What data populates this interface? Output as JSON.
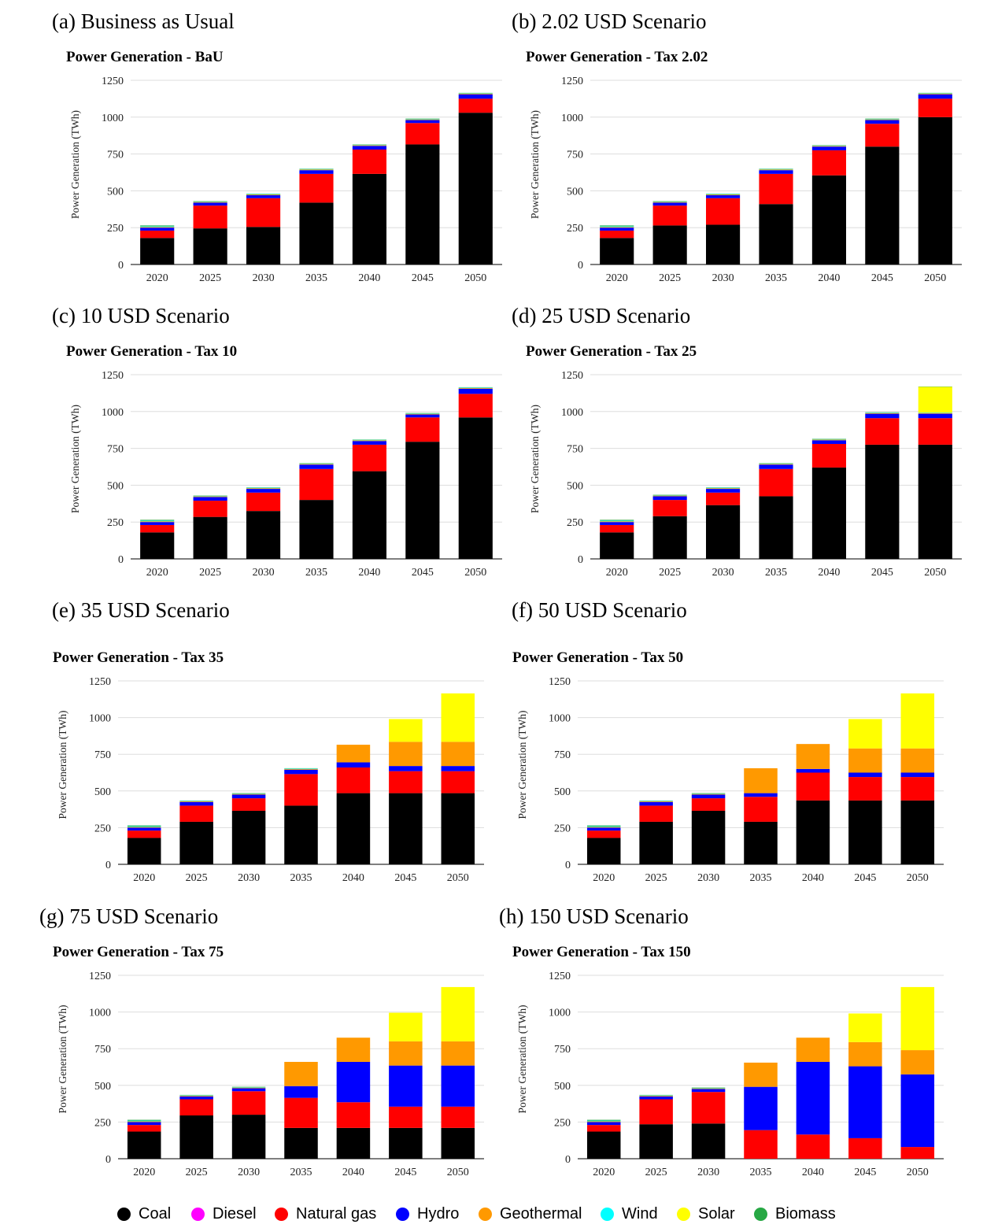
{
  "colors": {
    "Coal": "#000000",
    "Diesel": "#ff00ff",
    "Natural gas": "#ff0000",
    "Hydro": "#0000ff",
    "Geothermal": "#ff9900",
    "Wind": "#00ffff",
    "Solar": "#ffff00",
    "Biomass": "#27a844"
  },
  "legend": [
    {
      "name": "Coal",
      "color": "#000000"
    },
    {
      "name": "Diesel",
      "color": "#ff00ff"
    },
    {
      "name": "Natural gas",
      "color": "#ff0000"
    },
    {
      "name": "Hydro",
      "color": "#0000ff"
    },
    {
      "name": "Geothermal",
      "color": "#ff9900"
    },
    {
      "name": "Wind",
      "color": "#00ffff"
    },
    {
      "name": "Solar",
      "color": "#ffff00"
    },
    {
      "name": "Biomass",
      "color": "#27a844"
    }
  ],
  "panels": [
    {
      "label": "(a) Business as Usual"
    },
    {
      "label": "(b) 2.02 USD Scenario"
    },
    {
      "label": "(c) 10 USD Scenario"
    },
    {
      "label": "(d) 25 USD Scenario"
    },
    {
      "label": "(e) 35 USD Scenario"
    },
    {
      "label": "(f) 50 USD Scenario"
    },
    {
      "label": "(g) 75 USD Scenario"
    },
    {
      "label": "(h) 150 USD Scenario"
    }
  ],
  "chart_data": [
    {
      "type": "bar",
      "stacked": true,
      "title": "Power Generation - BaU",
      "ylabel": "Power Generation (TWh)",
      "categories": [
        "2020",
        "2025",
        "2030",
        "2035",
        "2040",
        "2045",
        "2050"
      ],
      "yticks": [
        "0",
        "250",
        "500",
        "750",
        "1000",
        "1250"
      ],
      "ylim": [
        0,
        1250
      ],
      "grid": true,
      "series": [
        {
          "name": "Coal",
          "values": [
            180,
            245,
            255,
            420,
            615,
            815,
            1030
          ]
        },
        {
          "name": "Natural gas",
          "values": [
            50,
            155,
            195,
            195,
            165,
            145,
            95
          ]
        },
        {
          "name": "Hydro",
          "values": [
            20,
            20,
            20,
            25,
            25,
            20,
            30
          ]
        },
        {
          "name": "Geothermal",
          "values": [
            5,
            5,
            5,
            5,
            5,
            5,
            5
          ]
        },
        {
          "name": "Wind",
          "values": [
            5,
            3,
            3,
            3,
            3,
            3,
            3
          ]
        },
        {
          "name": "Biomass",
          "values": [
            5,
            2,
            2,
            2,
            2,
            2,
            2
          ]
        }
      ]
    },
    {
      "type": "bar",
      "stacked": true,
      "title": "Power Generation - Tax 2.02",
      "ylabel": "Power Generation (TWh)",
      "categories": [
        "2020",
        "2025",
        "2030",
        "2035",
        "2040",
        "2045",
        "2050"
      ],
      "yticks": [
        "0",
        "250",
        "500",
        "750",
        "1000",
        "1250"
      ],
      "ylim": [
        0,
        1250
      ],
      "grid": true,
      "series": [
        {
          "name": "Coal",
          "values": [
            180,
            265,
            270,
            410,
            605,
            800,
            1000
          ]
        },
        {
          "name": "Natural gas",
          "values": [
            50,
            135,
            180,
            205,
            170,
            155,
            125
          ]
        },
        {
          "name": "Hydro",
          "values": [
            20,
            20,
            20,
            25,
            25,
            25,
            30
          ]
        },
        {
          "name": "Geothermal",
          "values": [
            5,
            5,
            5,
            5,
            5,
            5,
            5
          ]
        },
        {
          "name": "Wind",
          "values": [
            5,
            3,
            3,
            3,
            3,
            3,
            3
          ]
        },
        {
          "name": "Biomass",
          "values": [
            5,
            2,
            2,
            2,
            2,
            2,
            2
          ]
        }
      ]
    },
    {
      "type": "bar",
      "stacked": true,
      "title": "Power Generation - Tax 10",
      "ylabel": "Power Generation (TWh)",
      "categories": [
        "2020",
        "2025",
        "2030",
        "2035",
        "2040",
        "2045",
        "2050"
      ],
      "yticks": [
        "0",
        "250",
        "500",
        "750",
        "1000",
        "1250"
      ],
      "ylim": [
        0,
        1250
      ],
      "grid": true,
      "series": [
        {
          "name": "Coal",
          "values": [
            180,
            285,
            325,
            400,
            595,
            795,
            960
          ]
        },
        {
          "name": "Natural gas",
          "values": [
            50,
            110,
            125,
            210,
            180,
            165,
            160
          ]
        },
        {
          "name": "Hydro",
          "values": [
            20,
            25,
            25,
            30,
            25,
            20,
            35
          ]
        },
        {
          "name": "Geothermal",
          "values": [
            5,
            5,
            5,
            5,
            5,
            5,
            5
          ]
        },
        {
          "name": "Wind",
          "values": [
            5,
            3,
            3,
            3,
            3,
            3,
            3
          ]
        },
        {
          "name": "Biomass",
          "values": [
            5,
            2,
            2,
            2,
            2,
            2,
            2
          ]
        }
      ]
    },
    {
      "type": "bar",
      "stacked": true,
      "title": "Power Generation - Tax 25",
      "ylabel": "Power Generation (TWh)",
      "categories": [
        "2020",
        "2025",
        "2030",
        "2035",
        "2040",
        "2045",
        "2050"
      ],
      "yticks": [
        "0",
        "250",
        "500",
        "750",
        "1000",
        "1250"
      ],
      "ylim": [
        0,
        1250
      ],
      "grid": true,
      "series": [
        {
          "name": "Coal",
          "values": [
            180,
            290,
            365,
            425,
            620,
            775,
            775
          ]
        },
        {
          "name": "Natural gas",
          "values": [
            50,
            110,
            85,
            185,
            160,
            180,
            180
          ]
        },
        {
          "name": "Hydro",
          "values": [
            20,
            25,
            25,
            30,
            25,
            30,
            30
          ]
        },
        {
          "name": "Geothermal",
          "values": [
            5,
            5,
            5,
            5,
            5,
            5,
            5
          ]
        },
        {
          "name": "Wind",
          "values": [
            5,
            3,
            3,
            3,
            3,
            3,
            3
          ]
        },
        {
          "name": "Solar",
          "values": [
            0,
            0,
            0,
            0,
            0,
            0,
            175
          ]
        },
        {
          "name": "Biomass",
          "values": [
            5,
            2,
            2,
            2,
            2,
            2,
            2
          ]
        }
      ]
    },
    {
      "type": "bar",
      "stacked": true,
      "title": "Power Generation - Tax 35",
      "ylabel": "Power Generation (TWh)",
      "categories": [
        "2020",
        "2025",
        "2030",
        "2035",
        "2040",
        "2045",
        "2050"
      ],
      "yticks": [
        "0",
        "250",
        "500",
        "750",
        "1000",
        "1250"
      ],
      "ylim": [
        0,
        1250
      ],
      "grid": true,
      "series": [
        {
          "name": "Coal",
          "values": [
            180,
            290,
            365,
            400,
            485,
            485,
            485
          ]
        },
        {
          "name": "Natural gas",
          "values": [
            50,
            110,
            85,
            215,
            175,
            150,
            150
          ]
        },
        {
          "name": "Hydro",
          "values": [
            20,
            25,
            25,
            30,
            35,
            35,
            35
          ]
        },
        {
          "name": "Geothermal",
          "values": [
            5,
            5,
            5,
            5,
            120,
            165,
            165
          ]
        },
        {
          "name": "Wind",
          "values": [
            5,
            3,
            3,
            3,
            0,
            0,
            0
          ]
        },
        {
          "name": "Solar",
          "values": [
            0,
            0,
            0,
            0,
            0,
            155,
            330
          ]
        },
        {
          "name": "Biomass",
          "values": [
            5,
            2,
            2,
            2,
            0,
            0,
            0
          ]
        }
      ]
    },
    {
      "type": "bar",
      "stacked": true,
      "title": "Power Generation - Tax 50",
      "ylabel": "Power Generation (TWh)",
      "categories": [
        "2020",
        "2025",
        "2030",
        "2035",
        "2040",
        "2045",
        "2050"
      ],
      "yticks": [
        "0",
        "250",
        "500",
        "750",
        "1000",
        "1250"
      ],
      "ylim": [
        0,
        1250
      ],
      "grid": true,
      "series": [
        {
          "name": "Coal",
          "values": [
            180,
            290,
            365,
            290,
            435,
            435,
            435
          ]
        },
        {
          "name": "Natural gas",
          "values": [
            50,
            110,
            85,
            170,
            190,
            160,
            160
          ]
        },
        {
          "name": "Hydro",
          "values": [
            20,
            25,
            25,
            25,
            25,
            30,
            30
          ]
        },
        {
          "name": "Geothermal",
          "values": [
            5,
            5,
            5,
            170,
            170,
            165,
            165
          ]
        },
        {
          "name": "Wind",
          "values": [
            5,
            3,
            3,
            0,
            0,
            0,
            0
          ]
        },
        {
          "name": "Solar",
          "values": [
            0,
            0,
            0,
            0,
            0,
            200,
            375
          ]
        },
        {
          "name": "Biomass",
          "values": [
            5,
            2,
            2,
            0,
            0,
            0,
            0
          ]
        }
      ]
    },
    {
      "type": "bar",
      "stacked": true,
      "title": "Power Generation - Tax 75",
      "ylabel": "Power Generation (TWh)",
      "categories": [
        "2020",
        "2025",
        "2030",
        "2035",
        "2040",
        "2045",
        "2050"
      ],
      "yticks": [
        "0",
        "250",
        "500",
        "750",
        "1000",
        "1250"
      ],
      "ylim": [
        0,
        1250
      ],
      "grid": true,
      "series": [
        {
          "name": "Coal",
          "values": [
            185,
            295,
            300,
            210,
            210,
            210,
            210
          ]
        },
        {
          "name": "Natural gas",
          "values": [
            45,
            110,
            160,
            205,
            175,
            145,
            145
          ]
        },
        {
          "name": "Hydro",
          "values": [
            20,
            20,
            20,
            80,
            275,
            280,
            280
          ]
        },
        {
          "name": "Geothermal",
          "values": [
            5,
            5,
            5,
            165,
            165,
            165,
            165
          ]
        },
        {
          "name": "Wind",
          "values": [
            5,
            3,
            3,
            0,
            0,
            0,
            0
          ]
        },
        {
          "name": "Solar",
          "values": [
            0,
            0,
            0,
            0,
            0,
            195,
            370
          ]
        },
        {
          "name": "Biomass",
          "values": [
            5,
            2,
            2,
            0,
            0,
            0,
            0
          ]
        }
      ]
    },
    {
      "type": "bar",
      "stacked": true,
      "title": "Power Generation - Tax 150",
      "ylabel": "Power Generation (TWh)",
      "categories": [
        "2020",
        "2025",
        "2030",
        "2035",
        "2040",
        "2045",
        "2050"
      ],
      "yticks": [
        "0",
        "250",
        "500",
        "750",
        "1000",
        "1250"
      ],
      "ylim": [
        0,
        1250
      ],
      "grid": true,
      "series": [
        {
          "name": "Coal",
          "values": [
            185,
            235,
            240,
            0,
            0,
            0,
            0
          ]
        },
        {
          "name": "Natural gas",
          "values": [
            45,
            170,
            215,
            195,
            165,
            140,
            80
          ]
        },
        {
          "name": "Hydro",
          "values": [
            20,
            20,
            20,
            295,
            495,
            490,
            495
          ]
        },
        {
          "name": "Geothermal",
          "values": [
            5,
            5,
            5,
            165,
            165,
            165,
            165
          ]
        },
        {
          "name": "Wind",
          "values": [
            5,
            3,
            3,
            0,
            0,
            0,
            0
          ]
        },
        {
          "name": "Solar",
          "values": [
            0,
            0,
            0,
            0,
            0,
            195,
            430
          ]
        },
        {
          "name": "Biomass",
          "values": [
            5,
            2,
            2,
            0,
            0,
            0,
            0
          ]
        }
      ]
    }
  ]
}
